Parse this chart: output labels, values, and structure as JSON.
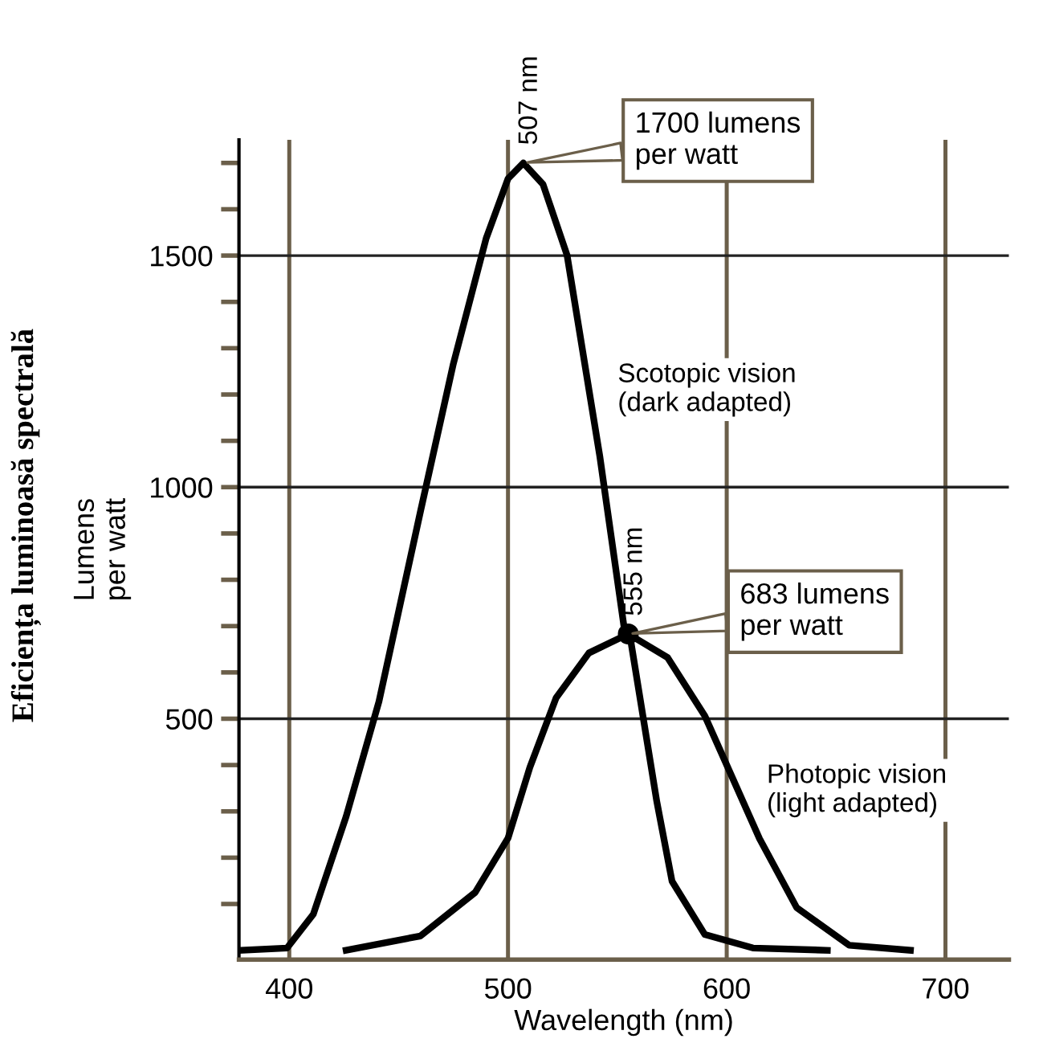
{
  "chart_data": {
    "type": "line",
    "xlabel": "Wavelength (nm)",
    "ylabel": "Lumens\nper watt",
    "xlim": [
      377,
      729
    ],
    "ylim": [
      -20,
      1750
    ],
    "xticks": [
      400,
      500,
      600,
      700
    ],
    "yticks": [
      {
        "value": 100,
        "label": null
      },
      {
        "value": 200,
        "label": null
      },
      {
        "value": 300,
        "label": null
      },
      {
        "value": 400,
        "label": null
      },
      500,
      {
        "value": 600,
        "label": null
      },
      {
        "value": 700,
        "label": null
      },
      {
        "value": 800,
        "label": null
      },
      {
        "value": 900,
        "label": null
      },
      1000,
      {
        "value": 1100,
        "label": null
      },
      {
        "value": 1200,
        "label": null
      },
      {
        "value": 1300,
        "label": null
      },
      {
        "value": 1400,
        "label": null
      },
      1500,
      {
        "value": 1600,
        "label": null
      },
      {
        "value": 1700,
        "label": null
      }
    ],
    "grid": true,
    "marker": "none",
    "series": [
      {
        "name": "Scotopic vision\n(dark adapted)",
        "color": "#000000",
        "x": [
          378,
          399,
          411,
          426,
          441,
          460,
          475,
          490,
          500,
          507,
          516,
          527,
          542,
          553,
          556,
          568,
          575,
          590,
          612,
          646
        ],
        "values": [
          0,
          5,
          78,
          289,
          537,
          948,
          1266,
          1537,
          1666,
          1700,
          1654,
          1501,
          1066,
          700,
          672,
          322,
          149,
          34,
          5,
          0
        ]
      },
      {
        "name": "Photopic vision\n(light adapted)",
        "color": "#000000",
        "x": [
          426,
          460,
          485,
          500,
          510,
          522,
          537,
          555,
          573,
          590,
          602,
          615,
          632,
          656,
          684
        ],
        "values": [
          0,
          31,
          125,
          242,
          395,
          545,
          642,
          683,
          632,
          506,
          379,
          241,
          92,
          11,
          0
        ]
      },
      {
        "type": "scatter",
        "color": "#000000",
        "x": [
          555
        ],
        "values": [
          683
        ],
        "marker": "circle"
      }
    ],
    "annotations": [
      "Eficiența luminoasă spectrală",
      "507 nm",
      "1700 lumens\nper watt",
      "555 nm",
      "683 lumens\nper watt"
    ]
  }
}
